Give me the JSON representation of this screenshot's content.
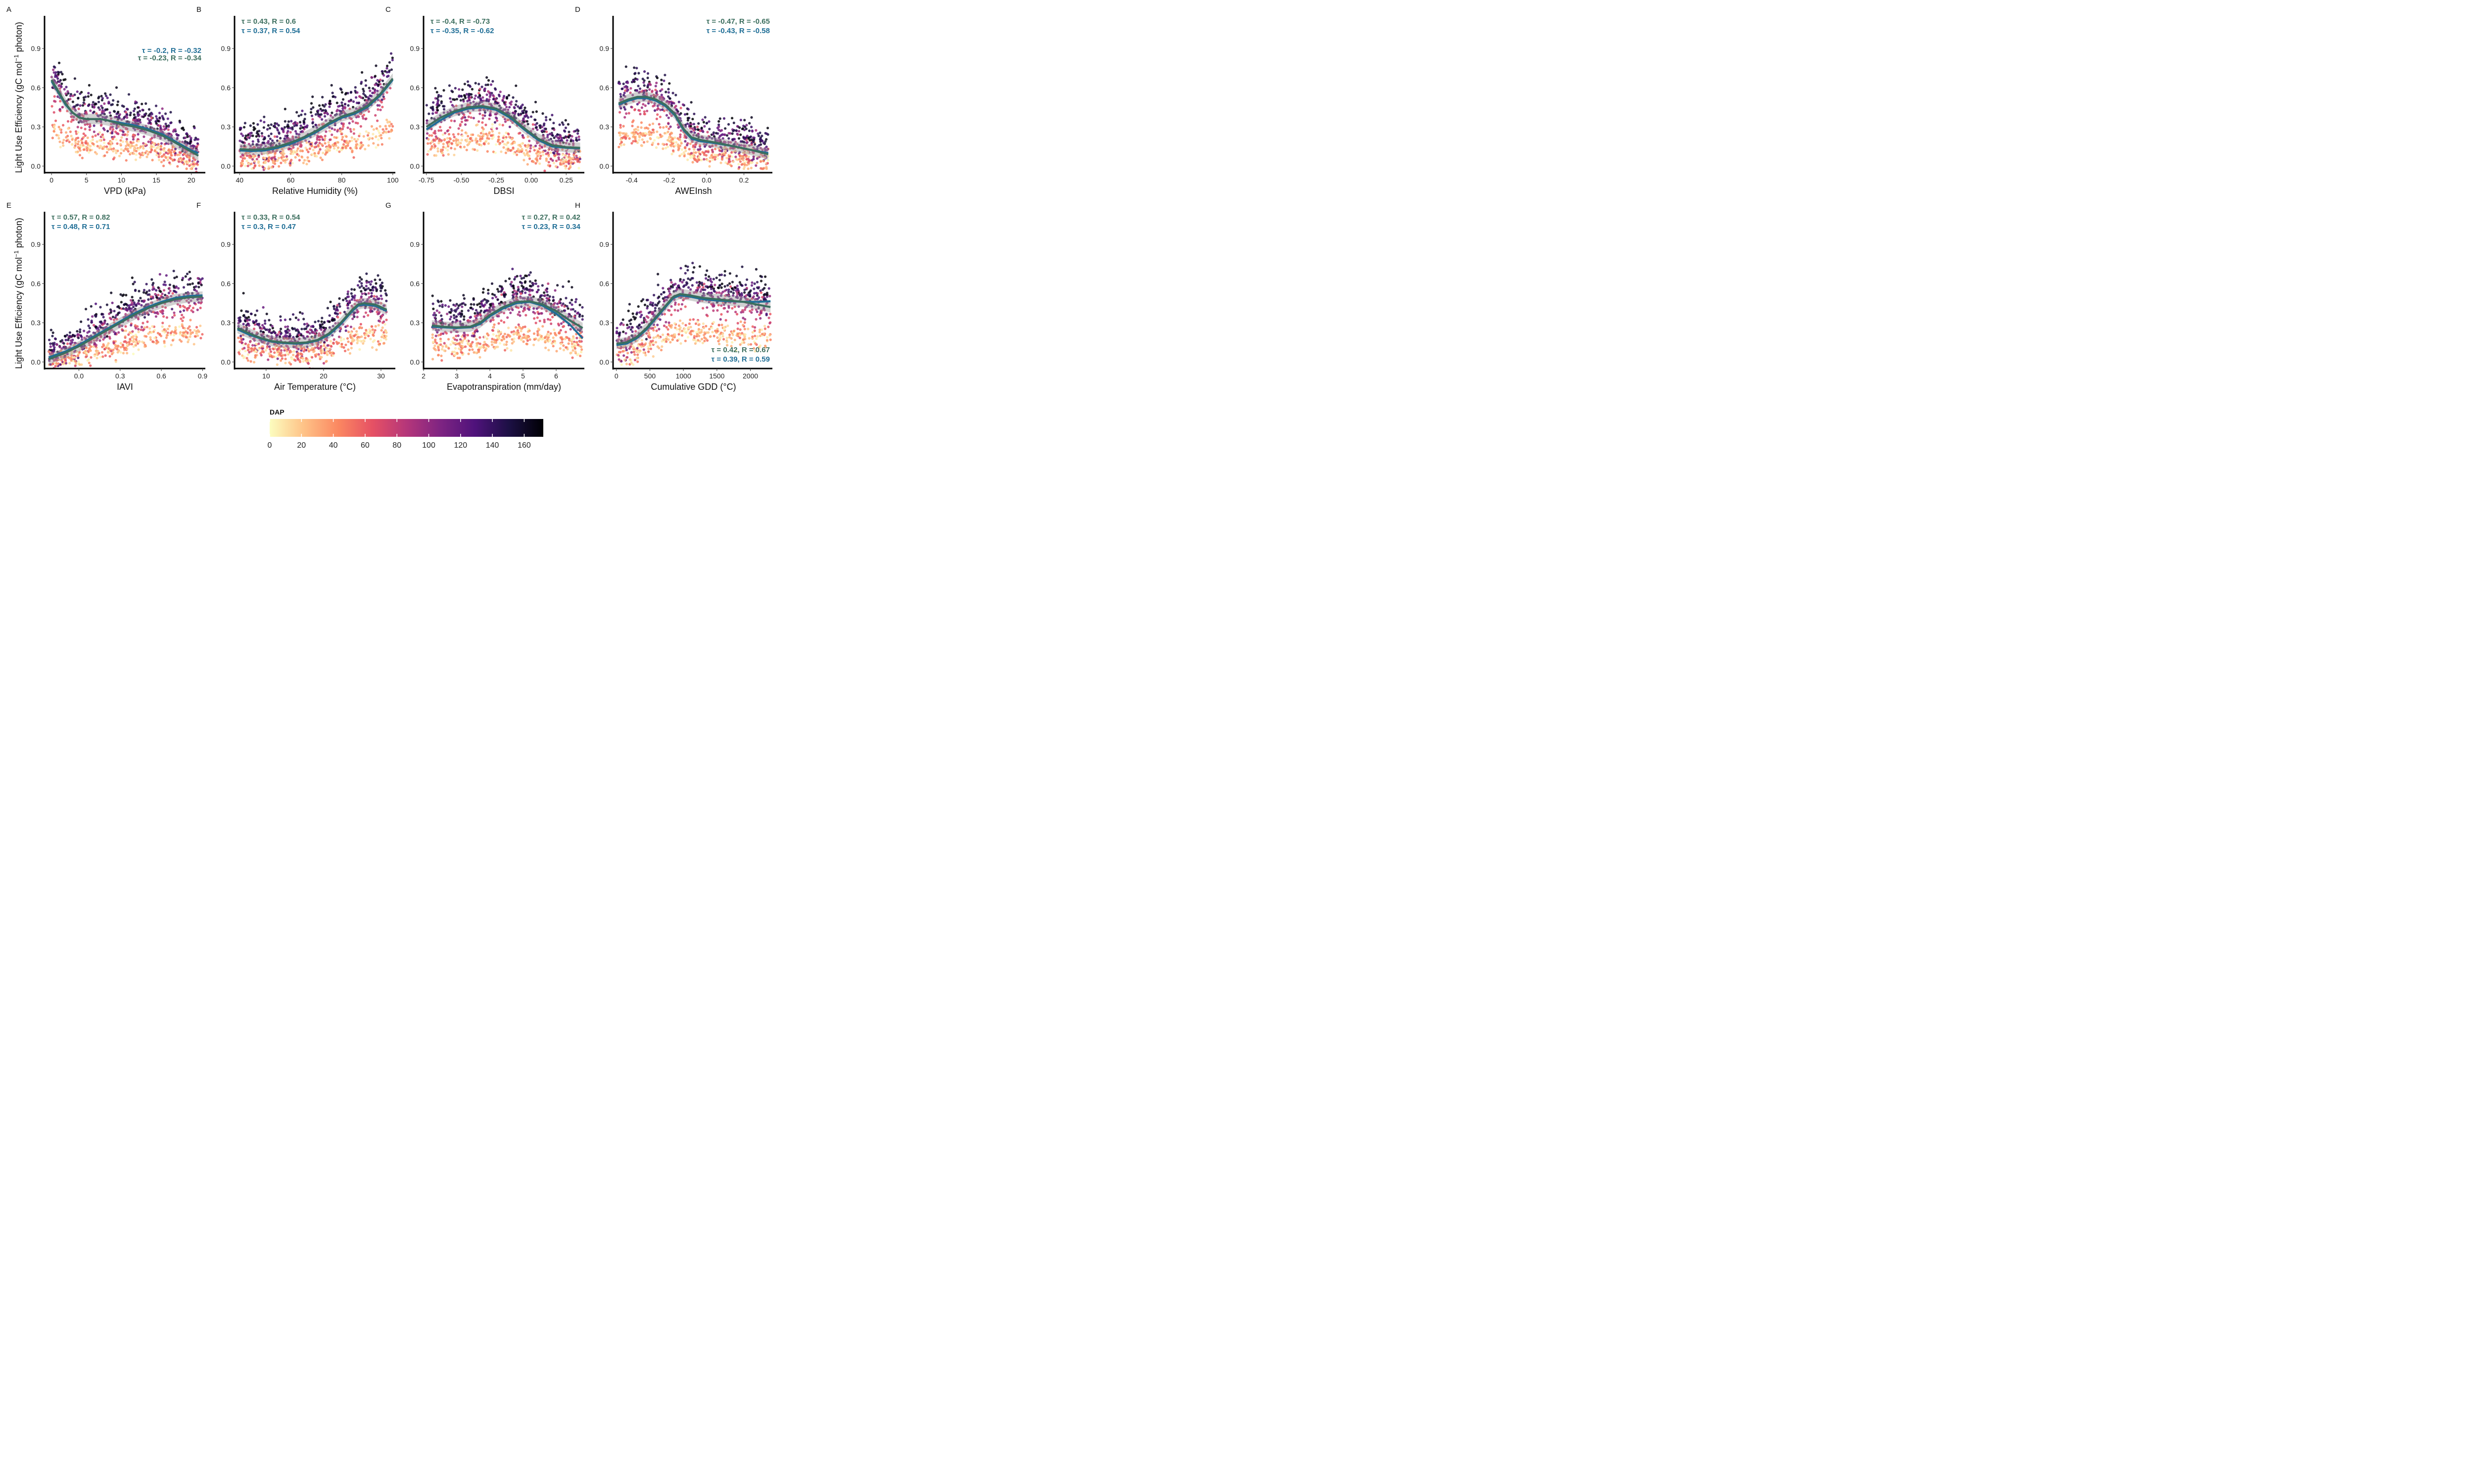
{
  "colors": {
    "fit_green": "#3c6e5e",
    "fit_blue": "#1f6e96",
    "stat_green": "#3c6e5e",
    "stat_blue": "#1f6e96",
    "ci_band": "#9a9a9a",
    "colormap": [
      "#fcfdbf",
      "#fec287",
      "#fb8861",
      "#e65164",
      "#b5367a",
      "#7e2482",
      "#4f127b",
      "#1c1044",
      "#000004"
    ]
  },
  "ylabel_parts": {
    "before": "Light Use Efficiency (gC mol",
    "sup": "−1",
    "after": " photon)"
  },
  "chart_data": [
    {
      "type": "scatter",
      "letter": "A",
      "xlabel": "VPD (kPa)",
      "xlim": [
        -1,
        22
      ],
      "ylim": [
        -0.05,
        1.15
      ],
      "xticks": [
        0,
        5,
        10,
        15,
        20
      ],
      "xtick_labels": [
        "0",
        "5",
        "10",
        "15",
        "20"
      ],
      "yticks": [
        0.0,
        0.3,
        0.6,
        0.9
      ],
      "ytick_labels": [
        "0.0",
        "0.3",
        "0.6",
        "0.9"
      ],
      "stats": [
        {
          "text": "τ = -0.2, R = -0.32",
          "color": "blue",
          "align": "end"
        },
        {
          "text": "τ = -0.23, R = -0.34",
          "color": "green",
          "align": "end"
        }
      ],
      "stats_pos": "top-right",
      "fit_green": [
        [
          0,
          0.66
        ],
        [
          1,
          0.57
        ],
        [
          2,
          0.48
        ],
        [
          3,
          0.41
        ],
        [
          4,
          0.37
        ],
        [
          5,
          0.36
        ],
        [
          6,
          0.36
        ],
        [
          7,
          0.36
        ],
        [
          8,
          0.35
        ],
        [
          10,
          0.32
        ],
        [
          12,
          0.3
        ],
        [
          14,
          0.27
        ],
        [
          16,
          0.23
        ],
        [
          18,
          0.17
        ],
        [
          20,
          0.11
        ],
        [
          21,
          0.08
        ]
      ],
      "fit_blue": [
        [
          0,
          0.65
        ],
        [
          1,
          0.56
        ],
        [
          2,
          0.47
        ],
        [
          3,
          0.41
        ],
        [
          4,
          0.37
        ],
        [
          5,
          0.36
        ],
        [
          6,
          0.36
        ],
        [
          7,
          0.36
        ],
        [
          8,
          0.35
        ],
        [
          10,
          0.33
        ],
        [
          12,
          0.31
        ],
        [
          14,
          0.28
        ],
        [
          16,
          0.24
        ],
        [
          18,
          0.18
        ],
        [
          20,
          0.12
        ],
        [
          21,
          0.1
        ]
      ]
    },
    {
      "type": "scatter",
      "letter": "B",
      "xlabel": "Relative Humidity (%)",
      "xlim": [
        38,
        101
      ],
      "ylim": [
        -0.05,
        1.15
      ],
      "xticks": [
        40,
        60,
        80,
        100
      ],
      "xtick_labels": [
        "40",
        "60",
        "80",
        "100"
      ],
      "yticks": [
        0.0,
        0.3,
        0.6,
        0.9
      ],
      "ytick_labels": [
        "0.0",
        "0.3",
        "0.6",
        "0.9"
      ],
      "stats": [
        {
          "text": "τ = 0.43, R = 0.6",
          "color": "green",
          "align": "start"
        },
        {
          "text": "τ = 0.37, R = 0.54",
          "color": "blue",
          "align": "start"
        }
      ],
      "stats_pos": "top-left",
      "fit_green": [
        [
          40,
          0.13
        ],
        [
          45,
          0.125
        ],
        [
          50,
          0.13
        ],
        [
          55,
          0.15
        ],
        [
          60,
          0.18
        ],
        [
          65,
          0.22
        ],
        [
          70,
          0.27
        ],
        [
          75,
          0.33
        ],
        [
          80,
          0.38
        ],
        [
          85,
          0.41
        ],
        [
          90,
          0.46
        ],
        [
          95,
          0.55
        ],
        [
          100,
          0.67
        ]
      ],
      "fit_blue": [
        [
          40,
          0.12
        ],
        [
          45,
          0.115
        ],
        [
          50,
          0.12
        ],
        [
          55,
          0.14
        ],
        [
          60,
          0.17
        ],
        [
          65,
          0.21
        ],
        [
          70,
          0.26
        ],
        [
          75,
          0.32
        ],
        [
          80,
          0.37
        ],
        [
          85,
          0.4
        ],
        [
          90,
          0.45
        ],
        [
          95,
          0.54
        ],
        [
          100,
          0.66
        ]
      ]
    },
    {
      "type": "scatter",
      "letter": "C",
      "xlabel": "DBSI",
      "xlim": [
        -0.77,
        0.38
      ],
      "ylim": [
        -0.05,
        1.15
      ],
      "xticks": [
        -0.75,
        -0.5,
        -0.25,
        0.0,
        0.25
      ],
      "xtick_labels": [
        "-0.75",
        "-0.50",
        "-0.25",
        "0.00",
        "0.25"
      ],
      "yticks": [
        0.0,
        0.3,
        0.6,
        0.9
      ],
      "ytick_labels": [
        "0.0",
        "0.3",
        "0.6",
        "0.9"
      ],
      "stats": [
        {
          "text": "τ = -0.4, R = -0.73",
          "color": "green",
          "align": "start"
        },
        {
          "text": "τ = -0.35, R = -0.62",
          "color": "blue",
          "align": "start"
        }
      ],
      "stats_pos": "top-left",
      "fit_green": [
        [
          -0.75,
          0.3
        ],
        [
          -0.65,
          0.37
        ],
        [
          -0.55,
          0.42
        ],
        [
          -0.45,
          0.45
        ],
        [
          -0.35,
          0.46
        ],
        [
          -0.25,
          0.44
        ],
        [
          -0.15,
          0.38
        ],
        [
          -0.05,
          0.29
        ],
        [
          0.05,
          0.21
        ],
        [
          0.15,
          0.16
        ],
        [
          0.25,
          0.145
        ],
        [
          0.35,
          0.14
        ]
      ],
      "fit_blue": [
        [
          -0.75,
          0.28
        ],
        [
          -0.65,
          0.35
        ],
        [
          -0.55,
          0.41
        ],
        [
          -0.45,
          0.44
        ],
        [
          -0.35,
          0.45
        ],
        [
          -0.25,
          0.43
        ],
        [
          -0.15,
          0.37
        ],
        [
          -0.05,
          0.28
        ],
        [
          0.05,
          0.2
        ],
        [
          0.15,
          0.15
        ],
        [
          0.25,
          0.14
        ],
        [
          0.35,
          0.135
        ]
      ]
    },
    {
      "type": "scatter",
      "letter": "D",
      "xlabel": "AWEInsh",
      "xlim": [
        -0.5,
        0.36
      ],
      "ylim": [
        -0.05,
        1.15
      ],
      "xticks": [
        -0.4,
        -0.2,
        0.0,
        0.2
      ],
      "xtick_labels": [
        "-0.4",
        "-0.2",
        "0.0",
        "0.2"
      ],
      "yticks": [
        0.0,
        0.3,
        0.6,
        0.9
      ],
      "ytick_labels": [
        "0.0",
        "0.3",
        "0.6",
        "0.9"
      ],
      "stats": [
        {
          "text": "τ = -0.47, R = -0.65",
          "color": "green",
          "align": "end"
        },
        {
          "text": "τ = -0.43, R = -0.58",
          "color": "blue",
          "align": "end"
        }
      ],
      "stats_pos": "top-right",
      "fit_green": [
        [
          -0.47,
          0.48
        ],
        [
          -0.42,
          0.51
        ],
        [
          -0.37,
          0.53
        ],
        [
          -0.32,
          0.53
        ],
        [
          -0.27,
          0.51
        ],
        [
          -0.22,
          0.47
        ],
        [
          -0.17,
          0.4
        ],
        [
          -0.12,
          0.28
        ],
        [
          -0.08,
          0.22
        ],
        [
          -0.03,
          0.2
        ],
        [
          0.05,
          0.18
        ],
        [
          0.15,
          0.15
        ],
        [
          0.25,
          0.12
        ],
        [
          0.33,
          0.09
        ]
      ],
      "fit_blue": [
        [
          -0.47,
          0.47
        ],
        [
          -0.42,
          0.5
        ],
        [
          -0.37,
          0.52
        ],
        [
          -0.32,
          0.52
        ],
        [
          -0.27,
          0.5
        ],
        [
          -0.22,
          0.46
        ],
        [
          -0.17,
          0.39
        ],
        [
          -0.12,
          0.27
        ],
        [
          -0.08,
          0.21
        ],
        [
          -0.03,
          0.19
        ],
        [
          0.05,
          0.175
        ],
        [
          0.15,
          0.15
        ],
        [
          0.25,
          0.12
        ],
        [
          0.33,
          0.1
        ]
      ]
    },
    {
      "type": "scatter",
      "letter": "E",
      "xlabel": "IAVI",
      "xlim": [
        -0.25,
        0.92
      ],
      "ylim": [
        -0.05,
        1.15
      ],
      "xticks": [
        0.0,
        0.3,
        0.6,
        0.9
      ],
      "xtick_labels": [
        "0.0",
        "0.3",
        "0.6",
        "0.9"
      ],
      "yticks": [
        0.0,
        0.3,
        0.6,
        0.9
      ],
      "ytick_labels": [
        "0.0",
        "0.3",
        "0.6",
        "0.9"
      ],
      "stats": [
        {
          "text": "τ = 0.57, R = 0.82",
          "color": "green",
          "align": "start"
        },
        {
          "text": "τ = 0.48, R = 0.71",
          "color": "blue",
          "align": "start"
        }
      ],
      "stats_pos": "top-left",
      "fit_green": [
        [
          -0.22,
          0.02
        ],
        [
          -0.1,
          0.07
        ],
        [
          0.0,
          0.12
        ],
        [
          0.1,
          0.18
        ],
        [
          0.2,
          0.24
        ],
        [
          0.3,
          0.3
        ],
        [
          0.4,
          0.36
        ],
        [
          0.5,
          0.41
        ],
        [
          0.6,
          0.45
        ],
        [
          0.7,
          0.48
        ],
        [
          0.8,
          0.495
        ],
        [
          0.9,
          0.5
        ]
      ],
      "fit_blue": [
        [
          -0.22,
          0.035
        ],
        [
          -0.1,
          0.08
        ],
        [
          0.0,
          0.13
        ],
        [
          0.1,
          0.19
        ],
        [
          0.2,
          0.25
        ],
        [
          0.3,
          0.31
        ],
        [
          0.4,
          0.37
        ],
        [
          0.5,
          0.42
        ],
        [
          0.6,
          0.46
        ],
        [
          0.7,
          0.49
        ],
        [
          0.8,
          0.505
        ],
        [
          0.9,
          0.51
        ]
      ]
    },
    {
      "type": "scatter",
      "letter": "F",
      "xlabel": "Air Temperature (°C)",
      "xlim": [
        4.5,
        32.5
      ],
      "ylim": [
        -0.05,
        1.15
      ],
      "xticks": [
        10,
        20,
        30
      ],
      "xtick_labels": [
        "10",
        "20",
        "30"
      ],
      "yticks": [
        0.0,
        0.3,
        0.6,
        0.9
      ],
      "ytick_labels": [
        "0.0",
        "0.3",
        "0.6",
        "0.9"
      ],
      "stats": [
        {
          "text": "τ = 0.33, R = 0.54",
          "color": "green",
          "align": "start"
        },
        {
          "text": "τ = 0.3, R = 0.47",
          "color": "blue",
          "align": "start"
        }
      ],
      "stats_pos": "top-left",
      "fit_green": [
        [
          5,
          0.26
        ],
        [
          7,
          0.22
        ],
        [
          9,
          0.185
        ],
        [
          11,
          0.16
        ],
        [
          13,
          0.15
        ],
        [
          15,
          0.145
        ],
        [
          17,
          0.15
        ],
        [
          19,
          0.17
        ],
        [
          21,
          0.22
        ],
        [
          23,
          0.3
        ],
        [
          25,
          0.4
        ],
        [
          26,
          0.44
        ],
        [
          27,
          0.45
        ],
        [
          29,
          0.44
        ],
        [
          31,
          0.4
        ]
      ],
      "fit_blue": [
        [
          5,
          0.25
        ],
        [
          7,
          0.21
        ],
        [
          9,
          0.18
        ],
        [
          11,
          0.155
        ],
        [
          13,
          0.145
        ],
        [
          15,
          0.14
        ],
        [
          17,
          0.145
        ],
        [
          19,
          0.165
        ],
        [
          21,
          0.21
        ],
        [
          23,
          0.29
        ],
        [
          25,
          0.39
        ],
        [
          26,
          0.43
        ],
        [
          27,
          0.44
        ],
        [
          29,
          0.43
        ],
        [
          31,
          0.39
        ]
      ]
    },
    {
      "type": "scatter",
      "letter": "G",
      "xlabel": "Evapotranspiration (mm/day)",
      "xlim": [
        2.0,
        6.85
      ],
      "ylim": [
        -0.05,
        1.15
      ],
      "xticks": [
        2,
        3,
        4,
        5,
        6
      ],
      "xtick_labels": [
        "2",
        "3",
        "4",
        "5",
        "6"
      ],
      "yticks": [
        0.0,
        0.3,
        0.6,
        0.9
      ],
      "ytick_labels": [
        "0.0",
        "0.3",
        "0.6",
        "0.9"
      ],
      "stats": [
        {
          "text": "τ = 0.27, R = 0.42",
          "color": "green",
          "align": "end"
        },
        {
          "text": "τ = 0.23, R = 0.34",
          "color": "blue",
          "align": "end"
        }
      ],
      "stats_pos": "top-right",
      "fit_green": [
        [
          2.25,
          0.28
        ],
        [
          2.6,
          0.27
        ],
        [
          3.0,
          0.265
        ],
        [
          3.4,
          0.27
        ],
        [
          3.7,
          0.3
        ],
        [
          4.0,
          0.36
        ],
        [
          4.4,
          0.42
        ],
        [
          4.8,
          0.46
        ],
        [
          5.2,
          0.465
        ],
        [
          5.6,
          0.44
        ],
        [
          6.0,
          0.39
        ],
        [
          6.4,
          0.32
        ],
        [
          6.8,
          0.26
        ]
      ],
      "fit_blue": [
        [
          2.25,
          0.27
        ],
        [
          2.6,
          0.265
        ],
        [
          3.0,
          0.26
        ],
        [
          3.4,
          0.265
        ],
        [
          3.7,
          0.29
        ],
        [
          4.0,
          0.35
        ],
        [
          4.4,
          0.41
        ],
        [
          4.8,
          0.45
        ],
        [
          5.2,
          0.46
        ],
        [
          5.6,
          0.43
        ],
        [
          6.0,
          0.37
        ],
        [
          6.4,
          0.29
        ],
        [
          6.8,
          0.18
        ]
      ]
    },
    {
      "type": "scatter",
      "letter": "H",
      "xlabel": "Cumulative GDD (°C)",
      "xlim": [
        -50,
        2350
      ],
      "ylim": [
        -0.05,
        1.15
      ],
      "xticks": [
        0,
        500,
        1000,
        1500,
        2000
      ],
      "xtick_labels": [
        "0",
        "500",
        "1000",
        "1500",
        "2000"
      ],
      "yticks": [
        0.0,
        0.3,
        0.6,
        0.9
      ],
      "ytick_labels": [
        "0.0",
        "0.3",
        "0.6",
        "0.9"
      ],
      "stats": [
        {
          "text": "τ = 0.42, R = 0.67",
          "color": "green",
          "align": "end"
        },
        {
          "text": "τ = 0.39, R = 0.59",
          "color": "blue",
          "align": "end"
        }
      ],
      "stats_pos": "bottom-right",
      "fit_green": [
        [
          0,
          0.14
        ],
        [
          150,
          0.15
        ],
        [
          300,
          0.19
        ],
        [
          450,
          0.26
        ],
        [
          600,
          0.35
        ],
        [
          750,
          0.44
        ],
        [
          850,
          0.5
        ],
        [
          950,
          0.52
        ],
        [
          1100,
          0.51
        ],
        [
          1300,
          0.49
        ],
        [
          1500,
          0.48
        ],
        [
          1700,
          0.47
        ],
        [
          1900,
          0.46
        ],
        [
          2100,
          0.44
        ],
        [
          2300,
          0.42
        ]
      ],
      "fit_blue": [
        [
          0,
          0.13
        ],
        [
          150,
          0.14
        ],
        [
          300,
          0.18
        ],
        [
          450,
          0.25
        ],
        [
          600,
          0.34
        ],
        [
          750,
          0.43
        ],
        [
          850,
          0.49
        ],
        [
          950,
          0.51
        ],
        [
          1100,
          0.5
        ],
        [
          1300,
          0.48
        ],
        [
          1500,
          0.47
        ],
        [
          1700,
          0.465
        ],
        [
          1900,
          0.46
        ],
        [
          2100,
          0.46
        ],
        [
          2300,
          0.465
        ]
      ]
    }
  ],
  "colorbar": {
    "title": "DAP",
    "min": 0,
    "max": 172,
    "ticks": [
      0,
      20,
      40,
      60,
      80,
      100,
      120,
      140,
      160
    ],
    "tick_labels": [
      "0",
      "20",
      "40",
      "60",
      "80",
      "100",
      "120",
      "140",
      "160"
    ]
  }
}
